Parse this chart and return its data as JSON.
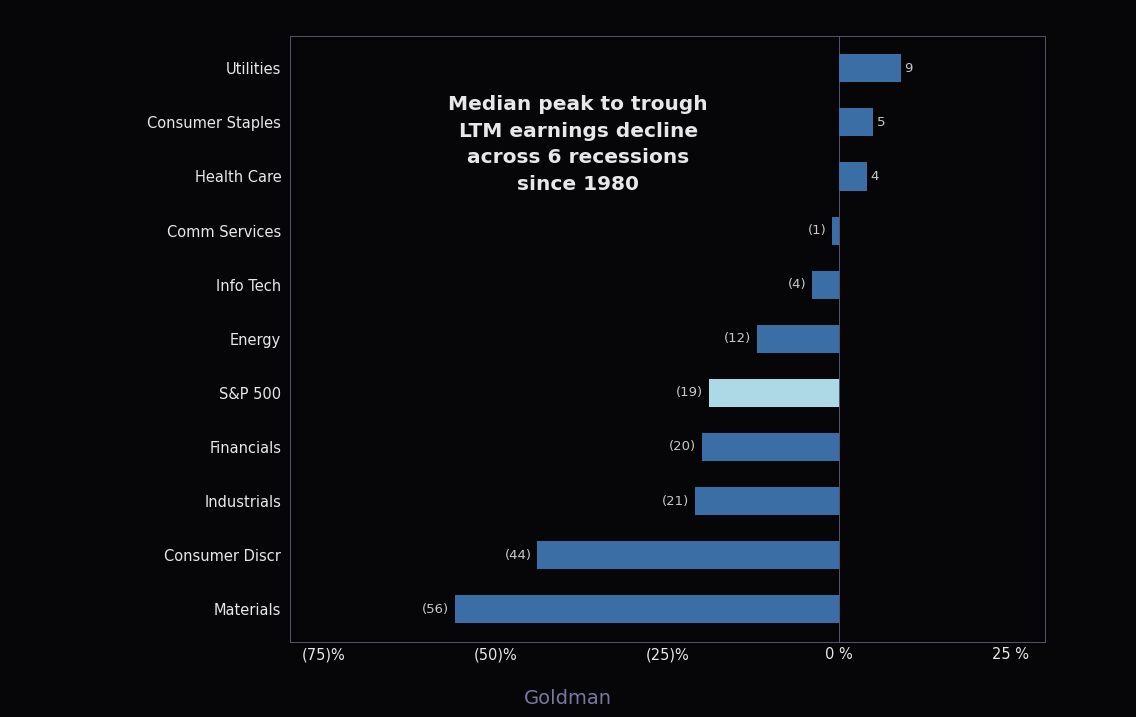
{
  "categories": [
    "Materials",
    "Consumer Discr",
    "Industrials",
    "Financials",
    "S&P 500",
    "Energy",
    "Info Tech",
    "Comm Services",
    "Health Care",
    "Consumer Staples",
    "Utilities"
  ],
  "values": [
    -56,
    -44,
    -21,
    -20,
    -19,
    -12,
    -4,
    -1,
    4,
    5,
    9
  ],
  "bar_colors": [
    "#3a6ea5",
    "#3a6ea5",
    "#3a6ea5",
    "#3a6ea5",
    "#add8e6",
    "#3a6ea5",
    "#3a6ea5",
    "#3a6ea5",
    "#3a6ea5",
    "#3a6ea5",
    "#3a6ea5"
  ],
  "label_values": [
    "(56)",
    "(44)",
    "(21)",
    "(20)",
    "(19)",
    "(12)",
    "(4)",
    "(1)",
    "4",
    "5",
    "9"
  ],
  "background_color": "#060608",
  "outer_border_color": "#1a1a2a",
  "plot_bg_color": "#060608",
  "text_color": "#e8e8e8",
  "annotation_color": "#c8c8c8",
  "spine_color": "#555570",
  "title": "Median peak to trough\nLTM earnings decline\nacross 6 recessions\nsince 1980",
  "title_fontsize": 14.5,
  "xlim": [
    -80,
    30
  ],
  "xticks": [
    -75,
    -50,
    -25,
    0,
    25
  ],
  "xticklabels": [
    "(75)%",
    "(50)%",
    "(25)%",
    "0 %",
    "25 %"
  ],
  "footer_text": "Goldman",
  "footer_color": "#7878a0",
  "footer_fontsize": 14
}
